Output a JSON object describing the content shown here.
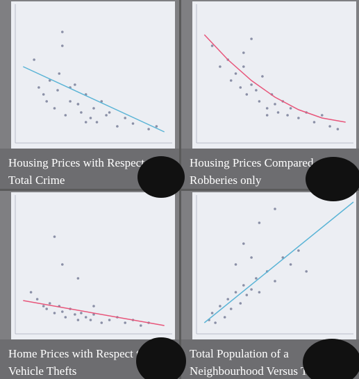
{
  "chart_data": [
    {
      "type": "scatter",
      "title_lines": [
        "Housing Prices with Respect",
        "Total Crime"
      ],
      "color": "#8a8fa6",
      "xlim": [
        0,
        100
      ],
      "ylim": [
        0,
        100
      ],
      "x": [
        12,
        15,
        18,
        20,
        22,
        25,
        27,
        30,
        32,
        35,
        38,
        40,
        42,
        45,
        48,
        50,
        52,
        55,
        58,
        60,
        65,
        70,
        75,
        85,
        90,
        30,
        40,
        28,
        45,
        35
      ],
      "y": [
        60,
        40,
        35,
        30,
        45,
        25,
        38,
        70,
        20,
        30,
        42,
        28,
        22,
        35,
        18,
        25,
        15,
        30,
        20,
        22,
        12,
        18,
        14,
        10,
        12,
        80,
        28,
        50,
        15,
        40
      ],
      "trend": {
        "color": "#5ab4d6",
        "x": [
          5,
          95
        ],
        "y": [
          55,
          8
        ]
      }
    },
    {
      "type": "scatter",
      "title_lines": [
        "Housing Prices Compared",
        "Robberies only"
      ],
      "color": "#8a8fa6",
      "xlim": [
        0,
        100
      ],
      "ylim": [
        0,
        100
      ],
      "x": [
        10,
        15,
        20,
        22,
        25,
        28,
        30,
        32,
        35,
        38,
        40,
        42,
        45,
        48,
        50,
        52,
        55,
        58,
        60,
        65,
        70,
        75,
        80,
        85,
        90,
        35,
        45,
        30
      ],
      "y": [
        70,
        55,
        60,
        45,
        50,
        40,
        65,
        35,
        42,
        38,
        30,
        48,
        25,
        35,
        28,
        22,
        30,
        20,
        25,
        18,
        22,
        15,
        20,
        12,
        10,
        75,
        20,
        55
      ],
      "trend": {
        "color": "#e8557a",
        "x": [
          5,
          20,
          35,
          50,
          65,
          80,
          95
        ],
        "y": [
          78,
          60,
          45,
          33,
          24,
          18,
          15
        ]
      }
    },
    {
      "type": "scatter",
      "title_lines": [
        "Home Prices with Respect t",
        "Vehicle Thefts"
      ],
      "color": "#8a8fa6",
      "xlim": [
        0,
        100
      ],
      "ylim": [
        0,
        100
      ],
      "x": [
        10,
        14,
        18,
        20,
        22,
        25,
        28,
        30,
        32,
        35,
        38,
        40,
        42,
        45,
        48,
        50,
        55,
        60,
        65,
        70,
        75,
        80,
        85,
        30,
        40,
        25,
        50
      ],
      "y": [
        30,
        25,
        20,
        18,
        22,
        15,
        20,
        16,
        12,
        18,
        14,
        10,
        15,
        12,
        10,
        14,
        8,
        10,
        12,
        8,
        10,
        6,
        8,
        50,
        40,
        70,
        20
      ],
      "trend": {
        "color": "#e8557a",
        "x": [
          5,
          95
        ],
        "y": [
          24,
          6
        ]
      }
    },
    {
      "type": "scatter",
      "title_lines": [
        "Total Population of a",
        "Neighbourhood Versus Tot"
      ],
      "color": "#8a8fa6",
      "xlim": [
        0,
        100
      ],
      "ylim": [
        0,
        100
      ],
      "x": [
        8,
        10,
        12,
        15,
        18,
        20,
        22,
        25,
        28,
        30,
        32,
        35,
        38,
        40,
        45,
        50,
        55,
        60,
        65,
        70,
        40,
        30,
        25,
        50,
        35
      ],
      "y": [
        10,
        15,
        8,
        20,
        12,
        25,
        18,
        30,
        22,
        35,
        28,
        32,
        40,
        30,
        45,
        38,
        55,
        50,
        60,
        45,
        80,
        65,
        50,
        90,
        55
      ],
      "trend": {
        "color": "#5ab4d6",
        "x": [
          5,
          100
        ],
        "y": [
          8,
          95
        ]
      }
    }
  ]
}
